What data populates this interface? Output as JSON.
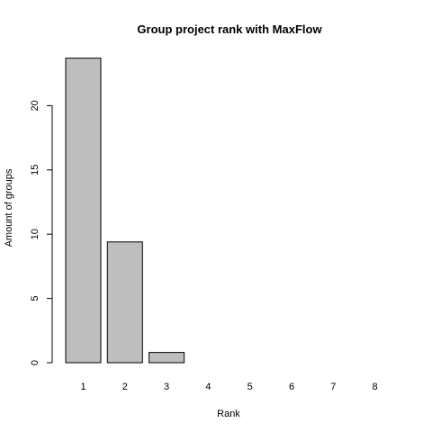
{
  "chart_data": {
    "type": "bar",
    "title": "Group project rank with MaxFlow",
    "xlabel": "Rank",
    "ylabel": "Amount of groups",
    "categories": [
      "1",
      "2",
      "3",
      "4",
      "5",
      "6",
      "7",
      "8"
    ],
    "values": [
      23.7,
      9.4,
      0.8,
      0,
      0,
      0,
      0,
      0
    ],
    "ylim": [
      0,
      24
    ],
    "yticks": [
      0,
      5,
      10,
      15,
      20
    ],
    "grid": false,
    "bar_fill": "#bebebe",
    "bar_stroke": "#000000"
  }
}
